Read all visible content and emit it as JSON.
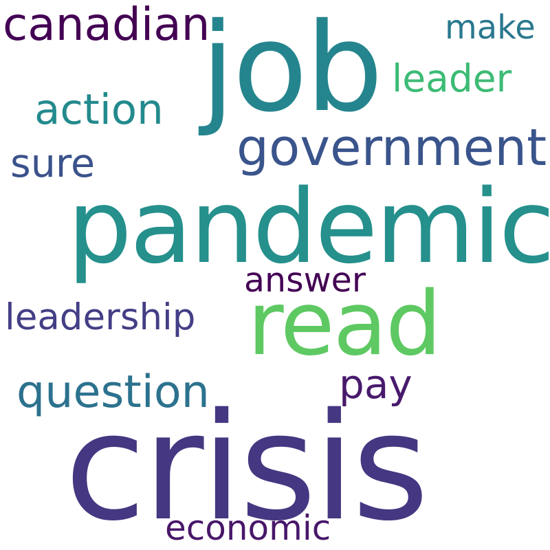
{
  "word_cloud": {
    "words": [
      {
        "id": "crisis",
        "text": "crisis",
        "color": "#453781"
      },
      {
        "id": "pandemic",
        "text": "pandemic",
        "color": "#25908c"
      },
      {
        "id": "job",
        "text": "job",
        "color": "#25858e"
      },
      {
        "id": "read",
        "text": "read",
        "color": "#5ec962"
      },
      {
        "id": "government",
        "text": "government",
        "color": "#3a548c"
      },
      {
        "id": "canadian",
        "text": "canadian",
        "color": "#440154"
      },
      {
        "id": "make",
        "text": "make",
        "color": "#2a788e"
      },
      {
        "id": "leader",
        "text": "leader",
        "color": "#3cbb75"
      },
      {
        "id": "action",
        "text": "action",
        "color": "#238a8d"
      },
      {
        "id": "sure",
        "text": "sure",
        "color": "#3b528b"
      },
      {
        "id": "answer",
        "text": "answer",
        "color": "#440154"
      },
      {
        "id": "leadership",
        "text": "leadership",
        "color": "#433e85"
      },
      {
        "id": "question",
        "text": "question",
        "color": "#2c728e"
      },
      {
        "id": "pay",
        "text": "pay",
        "color": "#481a6c"
      },
      {
        "id": "economic",
        "text": "economic",
        "color": "#481769"
      }
    ]
  }
}
